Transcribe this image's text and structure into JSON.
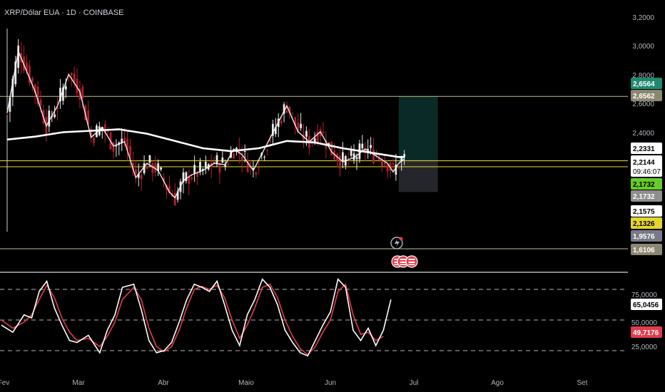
{
  "symbol_title": "XRP/Dólar EUA · 1D · COINBASE",
  "colors": {
    "background": "#000000",
    "up": "#e8e8e8",
    "down": "#b3202a",
    "ma": "#ffffff",
    "level_line": "#d8d49a",
    "yellow_line": "#e5d42d",
    "long_target": "#26a69a",
    "long_stop": "#434651",
    "stoch_k": "#ffffff",
    "stoch_d": "#e23c4a"
  },
  "chart_data": [
    {
      "type": "candlestick",
      "title": "XRP/Dólar EUA · 1D · COINBASE",
      "ylim": [
        1.6,
        3.2
      ],
      "y_ticks": [
        "3,2000",
        "3,0000",
        "2,8000",
        "2,6000",
        "2,4000"
      ],
      "x_tick_labels": [
        "Fev",
        "Mar",
        "Abr",
        "Maio",
        "Jun",
        "Jul",
        "Ago",
        "Set"
      ],
      "close_path": [
        [
          0,
          2.55
        ],
        [
          4,
          2.98
        ],
        [
          10,
          2.7
        ],
        [
          14,
          2.46
        ],
        [
          18,
          2.6
        ],
        [
          22,
          2.82
        ],
        [
          26,
          2.7
        ],
        [
          30,
          2.38
        ],
        [
          34,
          2.45
        ],
        [
          38,
          2.32
        ],
        [
          42,
          2.35
        ],
        [
          46,
          2.1
        ],
        [
          50,
          2.2
        ],
        [
          54,
          2.15
        ],
        [
          58,
          2.0
        ],
        [
          60,
          1.96
        ],
        [
          63,
          2.08
        ],
        [
          66,
          2.12
        ],
        [
          70,
          2.15
        ],
        [
          74,
          2.2
        ],
        [
          78,
          2.19
        ],
        [
          81,
          2.3
        ],
        [
          84,
          2.26
        ],
        [
          88,
          2.15
        ],
        [
          92,
          2.3
        ],
        [
          96,
          2.45
        ],
        [
          100,
          2.6
        ],
        [
          104,
          2.42
        ],
        [
          108,
          2.35
        ],
        [
          112,
          2.42
        ],
        [
          116,
          2.28
        ],
        [
          120,
          2.21
        ],
        [
          124,
          2.24
        ],
        [
          128,
          2.3
        ],
        [
          132,
          2.25
        ],
        [
          136,
          2.2
        ],
        [
          138,
          2.14
        ],
        [
          140,
          2.2
        ],
        [
          142,
          2.23
        ]
      ],
      "ma_path": [
        [
          0,
          2.36
        ],
        [
          10,
          2.38
        ],
        [
          20,
          2.41
        ],
        [
          30,
          2.42
        ],
        [
          40,
          2.43
        ],
        [
          50,
          2.4
        ],
        [
          60,
          2.35
        ],
        [
          70,
          2.3
        ],
        [
          80,
          2.28
        ],
        [
          90,
          2.3
        ],
        [
          100,
          2.35
        ],
        [
          110,
          2.34
        ],
        [
          120,
          2.3
        ],
        [
          130,
          2.27
        ],
        [
          140,
          2.24
        ],
        [
          142,
          2.24
        ]
      ],
      "horizontal_levels": [
        2.6562,
        2.2144,
        2.1732,
        1.6106
      ],
      "long_position": {
        "start_day": 140,
        "end_day": 154,
        "entry": 2.2144,
        "target": 2.6564,
        "stop": 2.0
      },
      "price_badges": [
        {
          "value": "2,6564",
          "bg": "#1f8a70",
          "fg": "#ffffff",
          "price": 2.695
        },
        {
          "value": "2,6562",
          "bg": "#8c8770",
          "fg": "#ffffff",
          "price": 2.625
        },
        {
          "value": "2,2331",
          "bg": "#ffffff",
          "fg": "#000000",
          "price": 2.3
        },
        {
          "value": "2,2144",
          "bg": "#ffffff",
          "fg": "#000000",
          "price": 2.235,
          "sub": "09:46:07"
        },
        {
          "value": "2,1732",
          "bg": "#67cc2a",
          "fg": "#000000",
          "price": 2.11
        },
        {
          "value": "2,1732",
          "bg": "#8e8e8e",
          "fg": "#ffffff",
          "price": 2.04
        },
        {
          "value": "2,1575",
          "bg": "#ffffff",
          "fg": "#000000",
          "price": 1.967
        },
        {
          "value": "2,1326",
          "bg": "#e5d42d",
          "fg": "#000000",
          "price": 1.895
        },
        {
          "value": "1,9576",
          "bg": "#787b86",
          "fg": "#ffffff",
          "price": 1.818
        },
        {
          "value": "1,6106",
          "bg": "#8c8770",
          "fg": "#ffffff",
          "price": 1.6106
        }
      ]
    },
    {
      "type": "line",
      "title": "",
      "ylim": [
        10,
        95
      ],
      "y_ticks": [
        "75,0000",
        "50,0000",
        "25,0000"
      ],
      "levels": [
        80,
        50,
        20
      ],
      "k_path": [
        [
          0,
          45
        ],
        [
          3,
          38
        ],
        [
          6,
          55
        ],
        [
          8,
          52
        ],
        [
          10,
          78
        ],
        [
          12,
          88
        ],
        [
          14,
          62
        ],
        [
          16,
          45
        ],
        [
          18,
          30
        ],
        [
          20,
          28
        ],
        [
          23,
          35
        ],
        [
          26,
          18
        ],
        [
          28,
          40
        ],
        [
          30,
          55
        ],
        [
          32,
          82
        ],
        [
          35,
          85
        ],
        [
          37,
          60
        ],
        [
          39,
          30
        ],
        [
          41,
          18
        ],
        [
          43,
          20
        ],
        [
          45,
          28
        ],
        [
          47,
          48
        ],
        [
          49,
          70
        ],
        [
          51,
          85
        ],
        [
          53,
          82
        ],
        [
          55,
          78
        ],
        [
          57,
          88
        ],
        [
          59,
          65
        ],
        [
          61,
          40
        ],
        [
          63,
          25
        ],
        [
          65,
          55
        ],
        [
          67,
          70
        ],
        [
          69,
          90
        ],
        [
          71,
          82
        ],
        [
          73,
          65
        ],
        [
          75,
          40
        ],
        [
          77,
          28
        ],
        [
          79,
          18
        ],
        [
          81,
          15
        ],
        [
          83,
          30
        ],
        [
          85,
          45
        ],
        [
          87,
          58
        ],
        [
          89,
          90
        ],
        [
          91,
          82
        ],
        [
          93,
          40
        ],
        [
          95,
          30
        ],
        [
          97,
          42
        ],
        [
          99,
          25
        ],
        [
          101,
          40
        ],
        [
          103,
          70
        ]
      ],
      "d_path": [
        [
          0,
          50
        ],
        [
          3,
          42
        ],
        [
          6,
          48
        ],
        [
          8,
          55
        ],
        [
          10,
          70
        ],
        [
          12,
          84
        ],
        [
          14,
          72
        ],
        [
          16,
          52
        ],
        [
          18,
          38
        ],
        [
          20,
          30
        ],
        [
          23,
          32
        ],
        [
          26,
          24
        ],
        [
          28,
          34
        ],
        [
          30,
          48
        ],
        [
          32,
          70
        ],
        [
          35,
          82
        ],
        [
          37,
          70
        ],
        [
          39,
          42
        ],
        [
          41,
          24
        ],
        [
          43,
          19
        ],
        [
          45,
          24
        ],
        [
          47,
          40
        ],
        [
          49,
          62
        ],
        [
          51,
          80
        ],
        [
          53,
          83
        ],
        [
          55,
          80
        ],
        [
          57,
          84
        ],
        [
          59,
          72
        ],
        [
          61,
          50
        ],
        [
          63,
          32
        ],
        [
          65,
          45
        ],
        [
          67,
          62
        ],
        [
          69,
          82
        ],
        [
          71,
          85
        ],
        [
          73,
          72
        ],
        [
          75,
          50
        ],
        [
          77,
          34
        ],
        [
          79,
          22
        ],
        [
          81,
          16
        ],
        [
          83,
          24
        ],
        [
          85,
          38
        ],
        [
          87,
          50
        ],
        [
          89,
          78
        ],
        [
          91,
          85
        ],
        [
          93,
          55
        ],
        [
          95,
          36
        ],
        [
          97,
          38
        ],
        [
          99,
          30
        ],
        [
          101,
          34
        ]
      ],
      "badges": [
        {
          "value": "65,0456",
          "bg": "#ffffff",
          "fg": "#000000",
          "level": 65
        },
        {
          "value": "49,7176",
          "bg": "#e23c4a",
          "fg": "#ffffff",
          "level": 34
        }
      ]
    }
  ]
}
